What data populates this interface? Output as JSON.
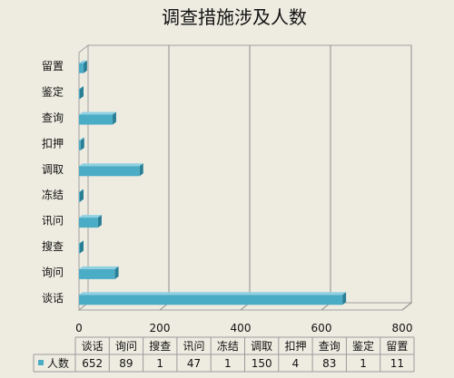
{
  "chart_data": {
    "type": "bar",
    "orientation": "horizontal",
    "title": "调查措施涉及人数",
    "categories": [
      "谈话",
      "询问",
      "搜查",
      "讯问",
      "冻结",
      "调取",
      "扣押",
      "查询",
      "鉴定",
      "留置"
    ],
    "series": [
      {
        "name": "人数",
        "values": [
          652,
          89,
          1,
          47,
          1,
          150,
          4,
          83,
          1,
          11
        ]
      }
    ],
    "xlim": [
      0,
      800
    ],
    "xticks": [
      0,
      200,
      400,
      600,
      800
    ],
    "grid": true,
    "style": "3d",
    "data_table": true,
    "colors": {
      "bar": "#4bacc6",
      "bar_top": "#8fd0e2",
      "bar_side": "#2a7e96",
      "background": "#eeece1"
    }
  }
}
